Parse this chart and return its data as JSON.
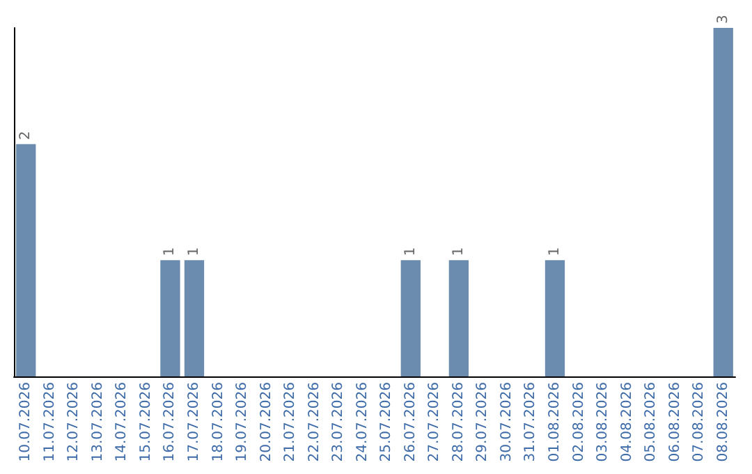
{
  "chart_data": {
    "type": "bar",
    "categories": [
      "10.07.2026",
      "11.07.2026",
      "12.07.2026",
      "13.07.2026",
      "14.07.2026",
      "15.07.2026",
      "16.07.2026",
      "17.07.2026",
      "18.07.2026",
      "19.07.2026",
      "20.07.2026",
      "21.07.2026",
      "22.07.2026",
      "23.07.2026",
      "24.07.2026",
      "25.07.2026",
      "26.07.2026",
      "27.07.2026",
      "28.07.2026",
      "29.07.2026",
      "30.07.2026",
      "31.07.2026",
      "01.08.2026",
      "02.08.2026",
      "03.08.2026",
      "04.08.2026",
      "05.08.2026",
      "06.08.2026",
      "07.08.2026",
      "08.08.2026"
    ],
    "values": [
      2,
      0,
      0,
      0,
      0,
      0,
      1,
      1,
      0,
      0,
      0,
      0,
      0,
      0,
      0,
      0,
      1,
      0,
      1,
      0,
      0,
      0,
      1,
      0,
      0,
      0,
      0,
      0,
      0,
      3
    ],
    "value_labels": [
      "2",
      null,
      null,
      null,
      null,
      null,
      "1",
      "1",
      null,
      null,
      null,
      null,
      null,
      null,
      null,
      null,
      "1",
      null,
      "1",
      null,
      null,
      null,
      "1",
      null,
      null,
      null,
      null,
      null,
      null,
      "3"
    ],
    "color": "#6b8cae",
    "tick_labels": "x"
  }
}
